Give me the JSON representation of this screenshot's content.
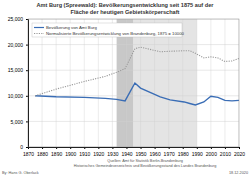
{
  "chart_data": {
    "type": "line",
    "title": "Amt Burg (Spreewald): Bevölkerungsentwicklung seit 1875 auf der",
    "subtitle": "Fläche der heutigen Gebietskörperschaft",
    "x": [
      1875,
      1890,
      1910,
      1925,
      1933,
      1939,
      1946,
      1950,
      1964,
      1971,
      1981,
      1985,
      1989,
      1995,
      2000,
      2005,
      2010,
      2015,
      2020
    ],
    "series": [
      {
        "name": "Bevölkerung von Amt Burg",
        "color": "#3a6db5",
        "line_style": "solid",
        "values": [
          10000,
          9800,
          9700,
          9500,
          9300,
          9000,
          12500,
          11500,
          9800,
          9200,
          8800,
          8500,
          8200,
          8800,
          9900,
          9700,
          9100,
          9000,
          9100
        ]
      },
      {
        "name": "Normalisierte Bevölkerungsentwicklung von Brandenburg, 1875 = 10000",
        "color": "#9a9a9a",
        "line_style": "dotted",
        "values": [
          10000,
          11300,
          12800,
          13800,
          14600,
          15300,
          19200,
          19500,
          18600,
          18700,
          18800,
          18800,
          18300,
          17400,
          17600,
          17400,
          16700,
          16800,
          17300
        ]
      }
    ],
    "periods": [
      {
        "start": 1933,
        "end": 1945
      },
      {
        "start": 1945,
        "end": 1990
      }
    ],
    "xlim": [
      1870,
      2020
    ],
    "xticks": [
      1870,
      1880,
      1890,
      1900,
      1910,
      1920,
      1930,
      1940,
      1950,
      1960,
      1970,
      1980,
      1990,
      2000,
      2010,
      2020
    ],
    "ylim": [
      0,
      25000
    ],
    "yticks": [
      0,
      {
        "value": 5000,
        "label": "5,000"
      },
      {
        "value": 10000,
        "label": "10,000"
      },
      {
        "value": 15000,
        "label": "15,000"
      },
      {
        "value": 20000,
        "label": "20,000"
      },
      {
        "value": 25000,
        "label": "25,000"
      }
    ],
    "grid": true,
    "legend": "top-left",
    "source_lines": [
      "Quellen: Amt für Statistik Berlin-Brandenburg",
      "Historisches Gemeindeverzeichnis und Bevölkerungsstand des Landes Brandenburg"
    ],
    "author": "By: Hans G. Oberlack",
    "date": "18.12.2020"
  }
}
